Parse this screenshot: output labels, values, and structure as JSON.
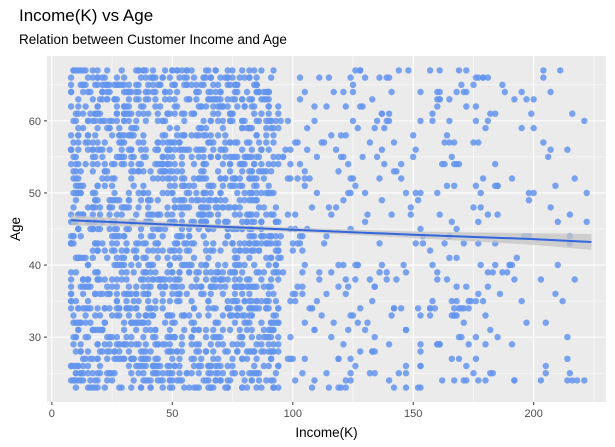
{
  "chart_data": {
    "type": "scatter",
    "title": "Income(K) vs Age",
    "subtitle": "Relation between Customer Income and Age",
    "xlabel": "Income(K)",
    "ylabel": "Age",
    "xlim": [
      -2,
      230
    ],
    "ylim": [
      21,
      69
    ],
    "x_ticks": [
      0,
      50,
      100,
      150,
      200
    ],
    "y_ticks": [
      30,
      40,
      50,
      60
    ],
    "grid": true,
    "background": "#ebebeb",
    "point_color": "#6495ed",
    "line_color": "#3366dd",
    "band_color": "#c4c4c4",
    "income_range": [
      8,
      224
    ],
    "age_range": [
      23,
      67
    ],
    "trend": {
      "x": [
        8,
        50,
        100,
        150,
        200,
        224
      ],
      "y": [
        46.2,
        45.6,
        44.9,
        44.2,
        43.6,
        43.2
      ],
      "band_halfwidth": [
        0.7,
        0.35,
        0.3,
        0.45,
        0.8,
        1.1
      ]
    }
  }
}
